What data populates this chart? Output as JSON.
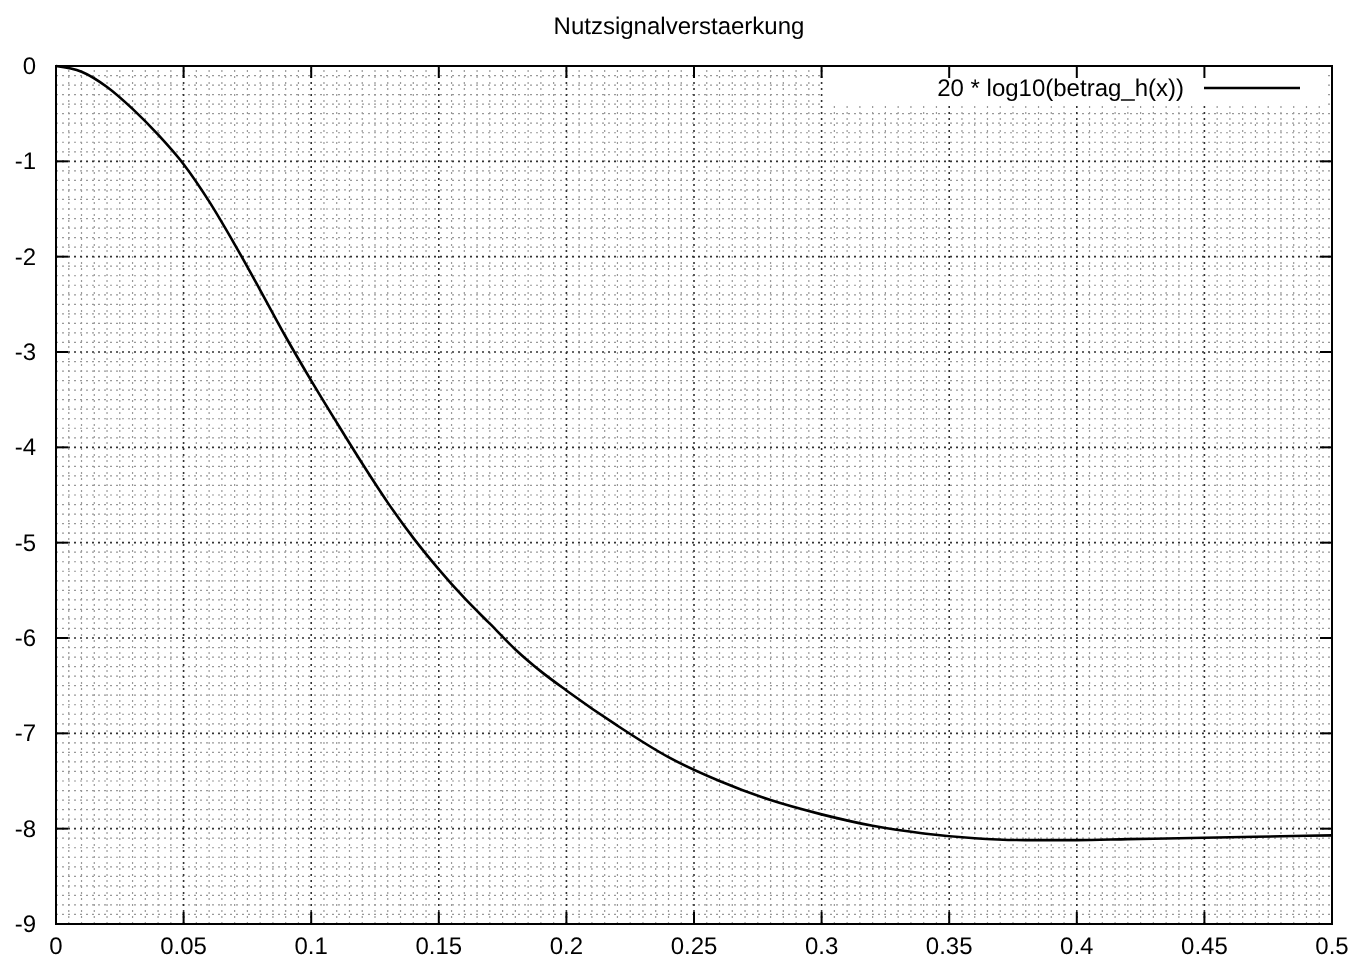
{
  "chart_data": {
    "type": "line",
    "title": "Nutzsignalverstaerkung",
    "x": [
      0,
      0.01,
      0.02,
      0.03,
      0.04,
      0.05,
      0.06,
      0.07,
      0.08,
      0.09,
      0.1,
      0.11,
      0.12,
      0.13,
      0.14,
      0.15,
      0.16,
      0.17,
      0.18,
      0.19,
      0.2,
      0.22,
      0.24,
      0.26,
      0.28,
      0.3,
      0.32,
      0.34,
      0.36,
      0.38,
      0.4,
      0.42,
      0.44,
      0.46,
      0.48,
      0.5
    ],
    "series": [
      {
        "name": "20 * log10(betrag_h(x))",
        "color": "#000000",
        "values": [
          0,
          -0.06,
          -0.22,
          -0.45,
          -0.72,
          -1.03,
          -1.42,
          -1.87,
          -2.35,
          -2.84,
          -3.3,
          -3.74,
          -4.17,
          -4.58,
          -4.95,
          -5.28,
          -5.58,
          -5.85,
          -6.12,
          -6.35,
          -6.55,
          -6.92,
          -7.25,
          -7.5,
          -7.7,
          -7.85,
          -7.97,
          -8.05,
          -8.1,
          -8.12,
          -8.12,
          -8.11,
          -8.1,
          -8.09,
          -8.08,
          -8.07
        ]
      }
    ],
    "xlim": [
      0,
      0.5
    ],
    "ylim": [
      -9,
      0
    ],
    "xticks": [
      {
        "value": 0,
        "label": "0"
      },
      {
        "value": 0.05,
        "label": "0.05"
      },
      {
        "value": 0.1,
        "label": "0.1"
      },
      {
        "value": 0.15,
        "label": "0.15"
      },
      {
        "value": 0.2,
        "label": "0.2"
      },
      {
        "value": 0.25,
        "label": "0.25"
      },
      {
        "value": 0.3,
        "label": "0.3"
      },
      {
        "value": 0.35,
        "label": "0.35"
      },
      {
        "value": 0.4,
        "label": "0.4"
      },
      {
        "value": 0.45,
        "label": "0.45"
      },
      {
        "value": 0.5,
        "label": "0.5"
      }
    ],
    "yticks": [
      -9,
      -8,
      -7,
      -6,
      -5,
      -4,
      -3,
      -2,
      -1,
      0
    ],
    "grid": true,
    "legend": "top right",
    "marker": "none",
    "line_style": "solid"
  }
}
